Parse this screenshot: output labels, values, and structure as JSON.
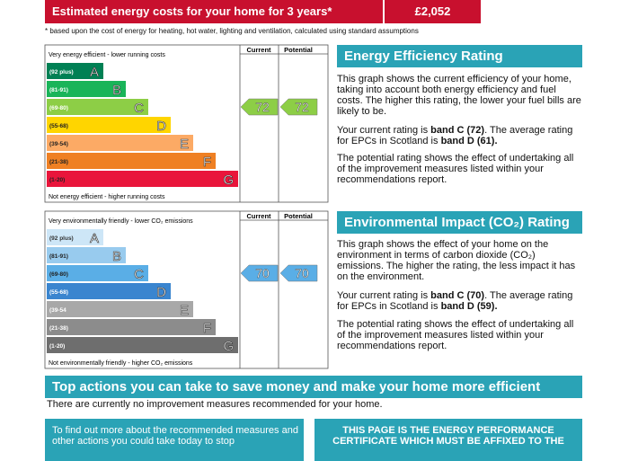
{
  "header": {
    "title": "Estimated energy costs for your home for 3 years*",
    "cost": "£2,052",
    "footnote": "* based upon the cost of energy for heating, hot water, lighting and ventilation, calculated using standard assumptions"
  },
  "energy": {
    "top_label": "Very energy efficient - lower running costs",
    "bottom_label": "Not energy efficient - higher running costs",
    "columns": [
      "Current",
      "Potential"
    ],
    "bands": [
      {
        "range": "(92 plus)",
        "letter": "A"
      },
      {
        "range": "(81-91)",
        "letter": "B"
      },
      {
        "range": "(69-80)",
        "letter": "C"
      },
      {
        "range": "(55-68)",
        "letter": "D"
      },
      {
        "range": "(39-54)",
        "letter": "E"
      },
      {
        "range": "(21-38)",
        "letter": "F"
      },
      {
        "range": "(1-20)",
        "letter": "G"
      }
    ],
    "colors": [
      "#008054",
      "#19b459",
      "#8dce46",
      "#ffd500",
      "#fcaa65",
      "#ef8023",
      "#e9153b"
    ],
    "arrow_color": "#8dce46",
    "current": 72,
    "potential": 72,
    "heading": "Energy Efficiency Rating",
    "p1": "This graph shows the current efficiency of your home, taking into account both energy efficiency and fuel costs. The higher this rating, the lower your fuel bills are likely to be.",
    "p2": [
      "Your current rating is ",
      "band C (72)",
      ". The average rating for EPCs in Scotland is ",
      "band D (61)."
    ],
    "p3": "The potential rating shows the effect of undertaking all of the improvement measures listed within your recommendations report."
  },
  "environment": {
    "top_label": "Very environmentally friendly - lower CO₂ emissions",
    "bottom_label": "Not environmentally friendly - higher CO₂ emissions",
    "columns": [
      "Current",
      "Potential"
    ],
    "bands": [
      {
        "range": "(92 plus)",
        "letter": "A"
      },
      {
        "range": "(81-91)",
        "letter": "B"
      },
      {
        "range": "(69-80)",
        "letter": "C"
      },
      {
        "range": "(55-68)",
        "letter": "D"
      },
      {
        "range": "(39-54",
        "letter": "E"
      },
      {
        "range": "(21-38)",
        "letter": "F"
      },
      {
        "range": "(1-20)",
        "letter": "G"
      }
    ],
    "colors": [
      "#cde6f7",
      "#98cbee",
      "#5aaee6",
      "#3a85cf",
      "#a8a8a8",
      "#8c8c8c",
      "#6e6e6e"
    ],
    "arrow_color": "#5aaee6",
    "current": 70,
    "potential": 70,
    "heading": "Environmental Impact (CO₂) Rating",
    "p1": "This graph shows the effect of your home on the environment in terms of carbon dioxide (CO₂) emissions. The higher the rating, the less impact it has on the environment.",
    "p2": [
      "Your current rating is ",
      "band C (70)",
      ". The average rating for EPCs in Scotland is ",
      "band D (59)."
    ],
    "p3": "The potential rating shows the effect of undertaking all of the improvement measures listed within your recommendations report."
  },
  "actions": {
    "title": "Top actions you can take to save money and make your home more efficient",
    "note": "There are currently no improvement measures recommended for your home.",
    "left_box": "To find out more about the recommended measures and other actions you could take today to stop",
    "right_box": "THIS PAGE IS THE ENERGY PERFORMANCE CERTIFICATE WHICH MUST BE AFFIXED TO THE"
  }
}
